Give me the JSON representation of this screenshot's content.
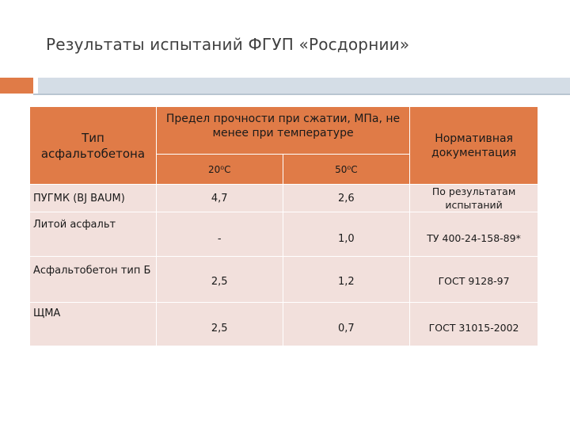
{
  "title": "Результаты испытаний ФГУП «Росдорнии»",
  "table": {
    "header": {
      "type": "Тип асфальтобетона",
      "strength": "Предел прочности при сжатии, МПа, не менее при температуре",
      "t20": "20⁰С",
      "t50": "50⁰С",
      "norm": "Нормативная документация"
    },
    "rows": [
      {
        "type": "ПУГМК (BJ BAUM)",
        "t20": "4,7",
        "t50": "2,6",
        "norm": "По результатам испытаний"
      },
      {
        "type": "Литой асфальт",
        "t20": "-",
        "t50": "1,0",
        "norm": "ТУ 400-24-158-89*"
      },
      {
        "type": "Асфальтобетон тип Б",
        "t20": "2,5",
        "t50": "1,2",
        "norm": "ГОСТ 9128-97"
      },
      {
        "type": "ЩМА",
        "t20": "2,5",
        "t50": "0,7",
        "norm": "ГОСТ 31015-2002"
      }
    ]
  },
  "colors": {
    "accent_orange": "#e07b47",
    "header_cell": "#e07b47",
    "body_cell": "#f2e0dc",
    "bar_blue": "#d4dde6",
    "title_text": "#404040"
  }
}
